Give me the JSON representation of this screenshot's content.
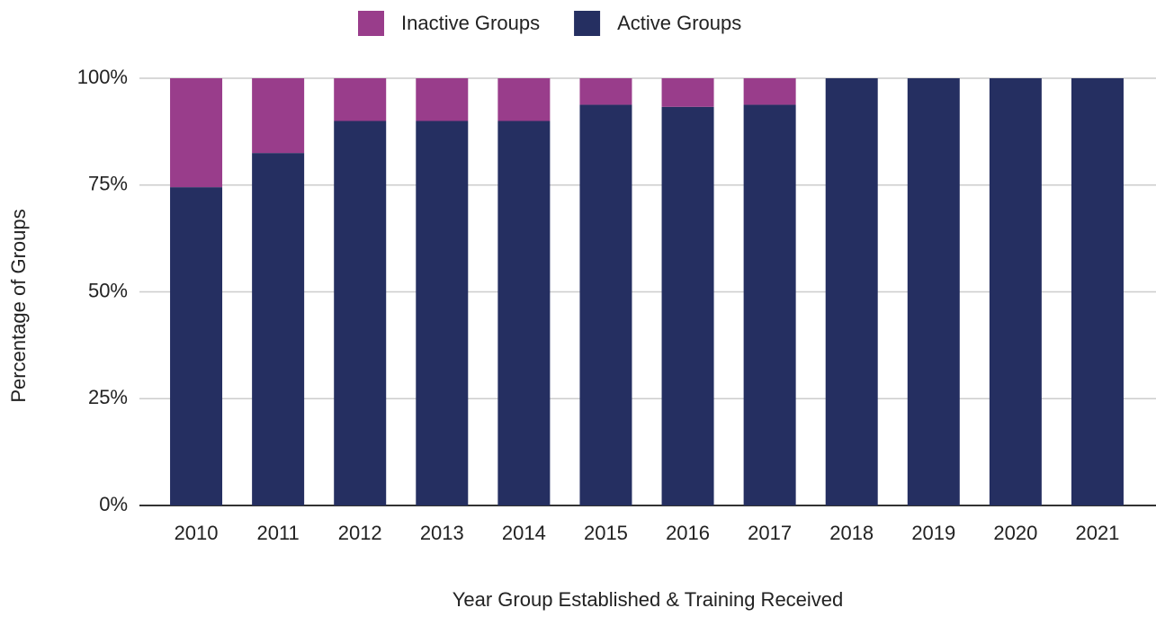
{
  "chart_data": {
    "type": "stacked_bar",
    "x_label": "Year Group Established & Training Received",
    "y_label": "Percentage of Groups",
    "categories": [
      "2010",
      "2011",
      "2012",
      "2013",
      "2014",
      "2015",
      "2016",
      "2017",
      "2018",
      "2019",
      "2020",
      "2021"
    ],
    "series": [
      {
        "name": "Active Groups",
        "color": "#252f61",
        "values": [
          74.5,
          82.5,
          90,
          90,
          90,
          93.8,
          93.3,
          93.8,
          100,
          100,
          100,
          100
        ]
      },
      {
        "name": "Inactive Groups",
        "color": "#993d8b",
        "values": [
          25.5,
          17.5,
          10,
          10,
          10,
          6.2,
          6.7,
          6.2,
          0,
          0,
          0,
          0
        ]
      }
    ],
    "ylim": [
      0,
      100
    ],
    "yticks": [
      {
        "value": 0,
        "label": "0%"
      },
      {
        "value": 25,
        "label": "25%"
      },
      {
        "value": 50,
        "label": "50%"
      },
      {
        "value": 75,
        "label": "75%"
      },
      {
        "value": 100,
        "label": "100%"
      }
    ],
    "grid": true,
    "legend": "top"
  }
}
